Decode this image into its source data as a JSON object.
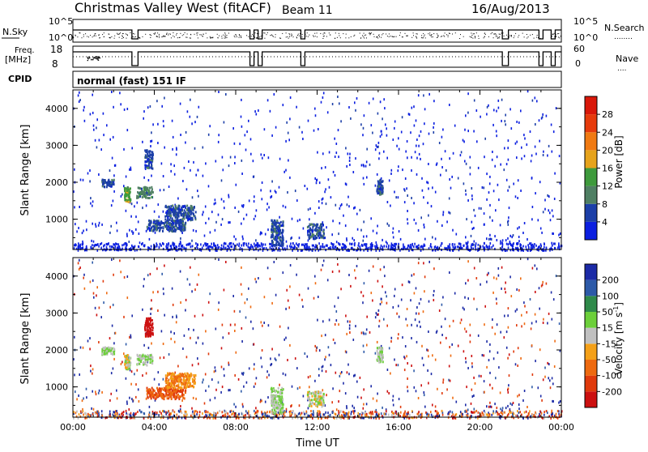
{
  "header": {
    "title": "Christmas Valley West (fitACF)",
    "beam": "Beam 11",
    "date": "16/Aug/2013"
  },
  "top_panels": {
    "nsky_label": "N.Sky",
    "nsearch_label": "N.Search",
    "nsearch_key": "........",
    "noise_ticks": [
      "10^5",
      "10^0"
    ],
    "freq_label_line1": "Freq.",
    "freq_label_line2": "[MHz]",
    "freq_ticks": [
      "18",
      "8"
    ],
    "nave_label": "Nave",
    "nave_key": "....",
    "nave_ticks": [
      "60",
      "0"
    ],
    "cpid_label": "CPID",
    "cpid_value": "normal (fast) 151 IF"
  },
  "chart_data": [
    {
      "type": "heatmap",
      "panel": "power",
      "ylabel": "Slant Range [km]",
      "xlabel": "",
      "xlim_hours": [
        0,
        24
      ],
      "ylim": [
        180,
        4500
      ],
      "y_ticks": [
        "4000",
        "3000",
        "2000",
        "1000"
      ],
      "colorbar_label": "Power [dB]",
      "colorbar_ticks": [
        "28",
        "24",
        "20",
        "16",
        "12",
        "8",
        "4"
      ],
      "colors": [
        "#0b1fe0",
        "#1c3fa8",
        "#4f7f63",
        "#3e9a3c",
        "#e6a31c",
        "#f07a12",
        "#e63b0c",
        "#d9180a"
      ],
      "features": [
        {
          "t": [
            1.4,
            2.0
          ],
          "r": [
            1900,
            2100
          ],
          "level": 1
        },
        {
          "t": [
            2.5,
            2.8
          ],
          "r": [
            1500,
            1900
          ],
          "level": 3
        },
        {
          "t": [
            3.1,
            3.9
          ],
          "r": [
            1600,
            1900
          ],
          "level": 2
        },
        {
          "t": [
            3.5,
            3.9
          ],
          "r": [
            2400,
            2900
          ],
          "level": 1
        },
        {
          "t": [
            3.6,
            5.5
          ],
          "r": [
            700,
            1000
          ],
          "level": 1
        },
        {
          "t": [
            4.5,
            6.0
          ],
          "r": [
            1000,
            1400
          ],
          "level": 1
        },
        {
          "t": [
            9.7,
            10.3
          ],
          "r": [
            300,
            1000
          ],
          "level": 1
        },
        {
          "t": [
            11.5,
            12.3
          ],
          "r": [
            500,
            900
          ],
          "level": 1
        },
        {
          "t": [
            14.9,
            15.2
          ],
          "r": [
            1700,
            2100
          ],
          "level": 1
        }
      ]
    },
    {
      "type": "heatmap",
      "panel": "velocity",
      "ylabel": "Slant Range [km]",
      "xlabel": "Time UT",
      "xlim_hours": [
        0,
        24
      ],
      "ylim": [
        180,
        4500
      ],
      "y_ticks": [
        "4000",
        "3000",
        "2000",
        "1000"
      ],
      "x_ticks": [
        "00:00",
        "04:00",
        "08:00",
        "12:00",
        "16:00",
        "20:00",
        "00:00"
      ],
      "colorbar_label": "Velocity [m s",
      "colorbar_label_sup": "-1",
      "colorbar_label_end": "]",
      "colorbar_ticks": [
        "200",
        "100",
        "50",
        "15",
        "-15",
        "-50",
        "-100",
        "-200"
      ],
      "colors": [
        "#1b2aa6",
        "#2d5aa8",
        "#2f8a4a",
        "#6ccf3a",
        "#c0c0c0",
        "#f4a018",
        "#ee6a10",
        "#e03a0c",
        "#cc1010"
      ],
      "features": [
        {
          "t": [
            1.4,
            2.0
          ],
          "r": [
            1900,
            2100
          ],
          "c": [
            3,
            4
          ]
        },
        {
          "t": [
            2.5,
            2.8
          ],
          "r": [
            1500,
            1900
          ],
          "c": [
            3,
            5
          ]
        },
        {
          "t": [
            3.1,
            3.9
          ],
          "r": [
            1600,
            1900
          ],
          "c": [
            3,
            4
          ]
        },
        {
          "t": [
            3.5,
            3.9
          ],
          "r": [
            2400,
            2900
          ],
          "c": [
            8,
            8
          ]
        },
        {
          "t": [
            3.6,
            5.5
          ],
          "r": [
            700,
            1000
          ],
          "c": [
            6,
            7
          ]
        },
        {
          "t": [
            4.5,
            6.0
          ],
          "r": [
            1000,
            1400
          ],
          "c": [
            5,
            6
          ]
        },
        {
          "t": [
            9.7,
            10.3
          ],
          "r": [
            300,
            1000
          ],
          "c": [
            3,
            4
          ]
        },
        {
          "t": [
            11.5,
            12.3
          ],
          "r": [
            500,
            900
          ],
          "c": [
            3,
            5
          ]
        },
        {
          "t": [
            14.9,
            15.2
          ],
          "r": [
            1700,
            2100
          ],
          "c": [
            3,
            4
          ]
        }
      ]
    }
  ]
}
